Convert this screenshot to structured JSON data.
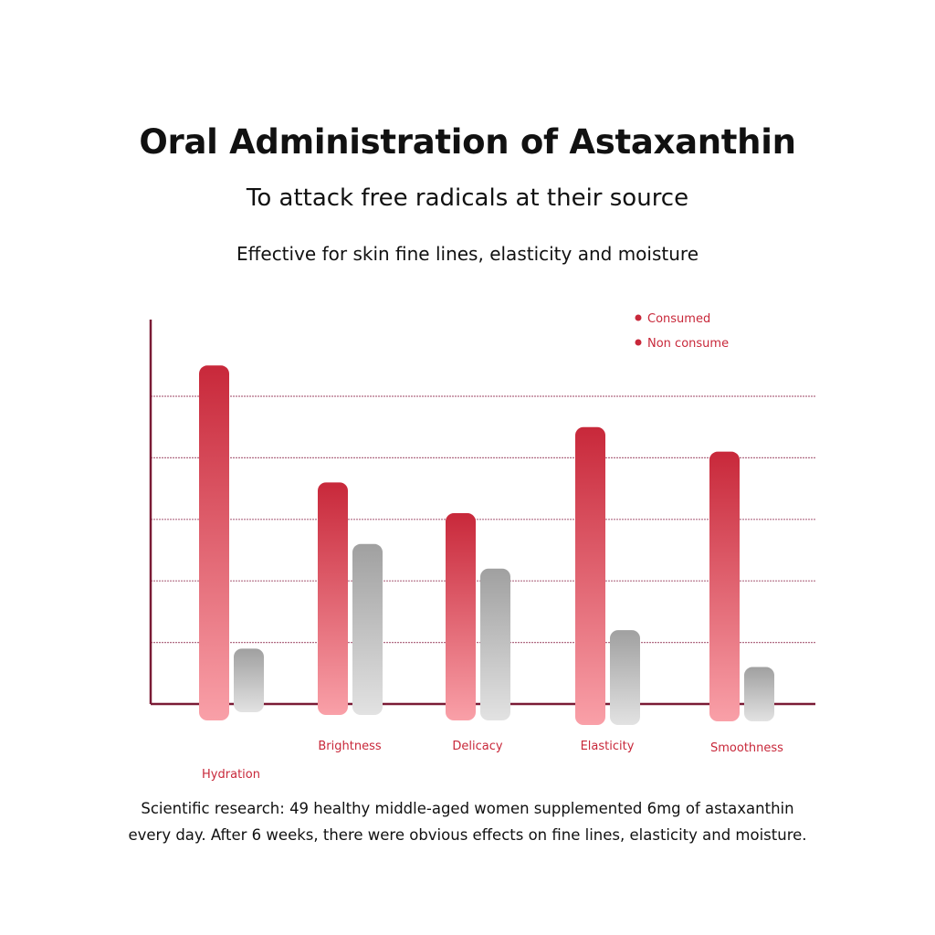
{
  "title": "Oral Administration of Astaxanthin",
  "subtitle": "To attack free radicals at their source",
  "tagline": "Effective for skin fine lines, elasticity and moisture",
  "footnote": [
    "Scientific research: 49 healthy middle-aged women supplemented 6mg of astaxanthin",
    "every day. After 6 weeks, there were obvious effects on fine lines, elasticity and moisture."
  ],
  "colors": {
    "consumed": "#c8283a",
    "consumed_light": "#f9a0a8",
    "non_consumed": "#a0a0a0",
    "non_consumed_light": "#e2e2e2",
    "axis": "#7a1a35",
    "label": "#c8283a"
  },
  "chart_data": {
    "type": "bar",
    "title": "",
    "xlabel": "",
    "ylabel": "",
    "categories": [
      "Hydration",
      "Brightness",
      "Delicacy",
      "Elasticity",
      "Smoothness"
    ],
    "series": [
      {
        "name": "Consumed",
        "values": [
          5.5,
          3.6,
          3.1,
          4.5,
          4.1
        ]
      },
      {
        "name": "Non consume",
        "values": [
          0.9,
          2.6,
          2.2,
          1.2,
          0.6
        ]
      }
    ],
    "ylim": [
      0,
      6.3
    ],
    "grid": true,
    "gridlines": [
      1,
      2,
      3,
      4,
      5
    ],
    "legend": "top-right"
  }
}
